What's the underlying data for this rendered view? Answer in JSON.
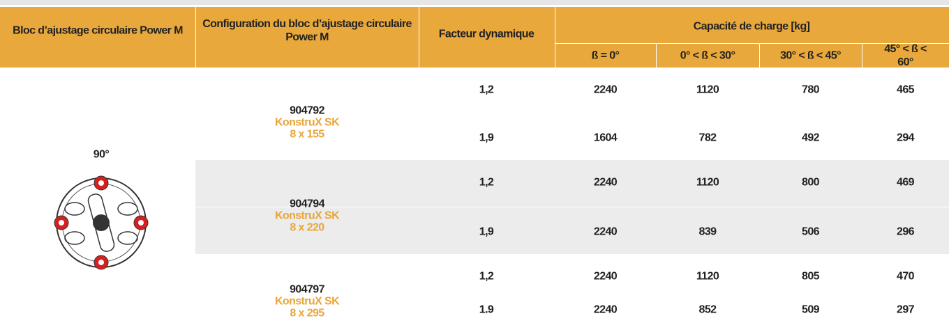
{
  "header": {
    "columns": [
      "Bloc d’ajustage circulaire Power M",
      "Configuration du bloc d’ajustage circulaire Power M",
      "Facteur dynamique",
      "Capacité de charge [kg]"
    ],
    "subcolumns": [
      "ß = 0°",
      "0° < ß < 30°",
      "30° < ß < 45°",
      "45° < ß < 60°"
    ]
  },
  "left": {
    "angle": "90°"
  },
  "groups": [
    {
      "id": "904792",
      "name": "KonstruX SK",
      "size": "8 x 155",
      "rows": [
        {
          "factor": "1,2",
          "values": [
            2240,
            1120,
            780,
            465
          ]
        },
        {
          "factor": "1,9",
          "values": [
            1604,
            782,
            492,
            294
          ]
        }
      ]
    },
    {
      "id": "904794",
      "name": "KonstruX SK",
      "size": "8 x 220",
      "rows": [
        {
          "factor": "1,2",
          "values": [
            2240,
            1120,
            800,
            469
          ]
        },
        {
          "factor": "1,9",
          "values": [
            2240,
            839,
            506,
            296
          ]
        }
      ]
    },
    {
      "id": "904797",
      "name": "KonstruX SK",
      "size": "8 x 295",
      "rows": [
        {
          "factor": "1,2",
          "values": [
            2240,
            1120,
            805,
            470
          ]
        },
        {
          "factor": "1.9",
          "values": [
            2240,
            852,
            509,
            297
          ]
        }
      ]
    }
  ]
}
